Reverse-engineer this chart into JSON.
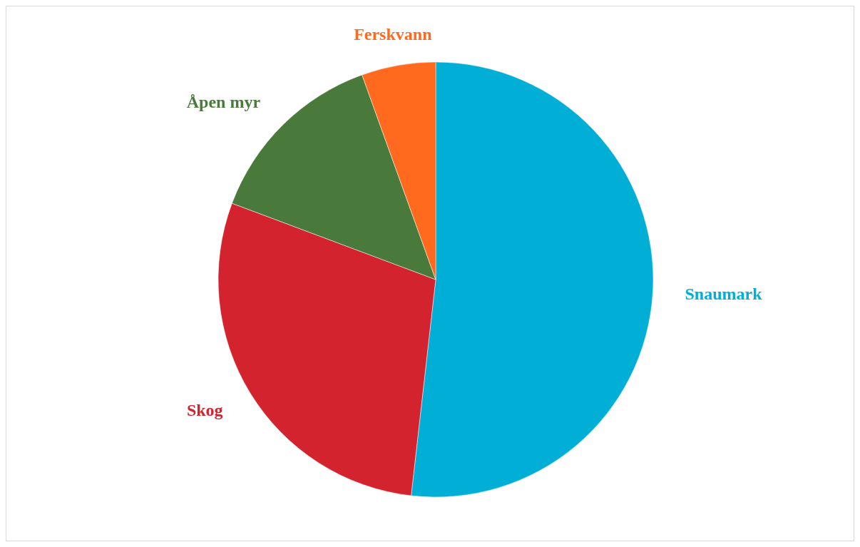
{
  "chart_data": {
    "type": "pie",
    "categories": [
      "Snaumark",
      "Skog",
      "Åpen myr",
      "Ferskvann"
    ],
    "values": [
      51.8,
      28.9,
      13.8,
      5.5
    ],
    "colors": [
      "#00aed6",
      "#d2232f",
      "#4a7a3b",
      "#ff6a1f"
    ]
  }
}
